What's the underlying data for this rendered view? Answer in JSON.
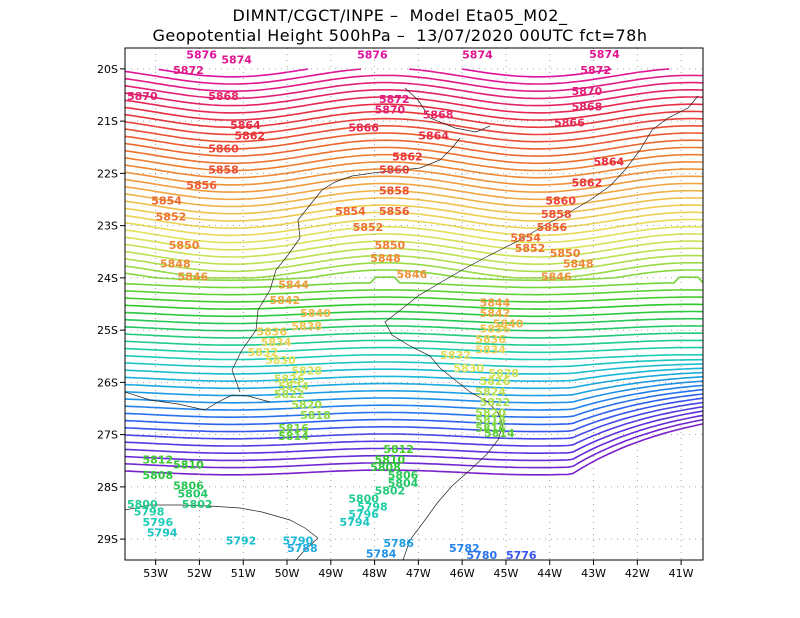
{
  "title_line1": "DIMNT/CGCT/INPE –  Model Eta05_M02_",
  "title_line2": "Geopotential Height 500hPa –  13/07/2020 00UTC fct=78h",
  "map": {
    "lon_range": [
      -53.7,
      -40.5
    ],
    "lat_range": [
      -29.4,
      -19.6
    ],
    "lon_ticks": [
      "53W",
      "52W",
      "51W",
      "50W",
      "49W",
      "48W",
      "47W",
      "46W",
      "45W",
      "44W",
      "43W",
      "42W",
      "41W"
    ],
    "lat_ticks": [
      "20S",
      "21S",
      "22S",
      "23S",
      "24S",
      "25S",
      "26S",
      "27S",
      "28S",
      "29S"
    ],
    "contour_min": 5764,
    "contour_max": 5876,
    "contour_interval": 2,
    "colors": [
      "#7a1fc9",
      "#5a32e0",
      "#2f5bf0",
      "#1e8fe8",
      "#18b8d8",
      "#1ccfb0",
      "#22c86a",
      "#2ec82a",
      "#7ad63a",
      "#b8e050",
      "#e2e25a",
      "#f0c850",
      "#f0a040",
      "#ee8030",
      "#ec5a30",
      "#e8303a",
      "#e22070",
      "#e010a0"
    ],
    "labels": [
      {
        "v": "5876",
        "lon": -52.3,
        "lat": -19.8
      },
      {
        "v": "5874",
        "lon": -51.5,
        "lat": -19.9
      },
      {
        "v": "5876",
        "lon": -48.4,
        "lat": -19.8
      },
      {
        "v": "5874",
        "lon": -46.0,
        "lat": -19.8
      },
      {
        "v": "5874",
        "lon": -43.1,
        "lat": -19.75
      },
      {
        "v": "5872",
        "lon": -52.6,
        "lat": -20.1
      },
      {
        "v": "5872",
        "lon": -43.3,
        "lat": -20.1
      },
      {
        "v": "5870",
        "lon": -53.7,
        "lat": -20.6
      },
      {
        "v": "5870",
        "lon": -43.5,
        "lat": -20.5
      },
      {
        "v": "5868",
        "lon": -51.8,
        "lat": -20.6
      },
      {
        "v": "5872",
        "lon": -47.9,
        "lat": -20.65
      },
      {
        "v": "5870",
        "lon": -48.0,
        "lat": -20.85
      },
      {
        "v": "5868",
        "lon": -46.9,
        "lat": -20.95
      },
      {
        "v": "5868",
        "lon": -43.5,
        "lat": -20.8
      },
      {
        "v": "5864",
        "lon": -51.3,
        "lat": -21.15
      },
      {
        "v": "5862",
        "lon": -51.2,
        "lat": -21.35
      },
      {
        "v": "5866",
        "lon": -48.6,
        "lat": -21.2
      },
      {
        "v": "5864",
        "lon": -47.0,
        "lat": -21.35
      },
      {
        "v": "5866",
        "lon": -43.9,
        "lat": -21.1
      },
      {
        "v": "5860",
        "lon": -51.8,
        "lat": -21.6
      },
      {
        "v": "5862",
        "lon": -47.6,
        "lat": -21.75
      },
      {
        "v": "5864",
        "lon": -43.0,
        "lat": -21.85
      },
      {
        "v": "5858",
        "lon": -51.8,
        "lat": -22.0
      },
      {
        "v": "5860",
        "lon": -47.9,
        "lat": -22.0
      },
      {
        "v": "5856",
        "lon": -52.3,
        "lat": -22.3
      },
      {
        "v": "5862",
        "lon": -43.5,
        "lat": -22.25
      },
      {
        "v": "5858",
        "lon": -47.9,
        "lat": -22.4
      },
      {
        "v": "5854",
        "lon": -53.1,
        "lat": -22.6
      },
      {
        "v": "5860",
        "lon": -44.1,
        "lat": -22.6
      },
      {
        "v": "5854",
        "lon": -48.9,
        "lat": -22.8
      },
      {
        "v": "5856",
        "lon": -47.9,
        "lat": -22.8
      },
      {
        "v": "5858",
        "lon": -44.2,
        "lat": -22.85
      },
      {
        "v": "5852",
        "lon": -53.0,
        "lat": -22.9
      },
      {
        "v": "5852",
        "lon": -48.5,
        "lat": -23.1
      },
      {
        "v": "5856",
        "lon": -44.3,
        "lat": -23.1
      },
      {
        "v": "5854",
        "lon": -44.9,
        "lat": -23.3
      },
      {
        "v": "5850",
        "lon": -52.7,
        "lat": -23.45
      },
      {
        "v": "5850",
        "lon": -48.0,
        "lat": -23.45
      },
      {
        "v": "5852",
        "lon": -44.8,
        "lat": -23.5
      },
      {
        "v": "5850",
        "lon": -44.0,
        "lat": -23.6
      },
      {
        "v": "5848",
        "lon": -52.9,
        "lat": -23.8
      },
      {
        "v": "5848",
        "lon": -48.1,
        "lat": -23.7
      },
      {
        "v": "5848",
        "lon": -43.7,
        "lat": -23.8
      },
      {
        "v": "5846",
        "lon": -52.5,
        "lat": -24.05
      },
      {
        "v": "5846",
        "lon": -47.5,
        "lat": -24.0
      },
      {
        "v": "5846",
        "lon": -44.2,
        "lat": -24.05
      },
      {
        "v": "5844",
        "lon": -50.2,
        "lat": -24.2
      },
      {
        "v": "5842",
        "lon": -50.4,
        "lat": -24.5
      },
      {
        "v": "5844",
        "lon": -45.6,
        "lat": -24.55
      },
      {
        "v": "5840",
        "lon": -49.7,
        "lat": -24.75
      },
      {
        "v": "5842",
        "lon": -45.6,
        "lat": -24.75
      },
      {
        "v": "5840",
        "lon": -45.3,
        "lat": -24.95
      },
      {
        "v": "5838",
        "lon": -49.9,
        "lat": -25.0
      },
      {
        "v": "5836",
        "lon": -45.6,
        "lat": -25.05
      },
      {
        "v": "5836",
        "lon": -50.7,
        "lat": -25.1
      },
      {
        "v": "5834",
        "lon": -50.6,
        "lat": -25.3
      },
      {
        "v": "5836",
        "lon": -45.7,
        "lat": -25.25
      },
      {
        "v": "5834",
        "lon": -45.7,
        "lat": -25.45
      },
      {
        "v": "5832",
        "lon": -50.9,
        "lat": -25.5
      },
      {
        "v": "5832",
        "lon": -46.5,
        "lat": -25.55
      },
      {
        "v": "5830",
        "lon": -50.5,
        "lat": -25.65
      },
      {
        "v": "5830",
        "lon": -46.2,
        "lat": -25.8
      },
      {
        "v": "5828",
        "lon": -49.9,
        "lat": -25.85
      },
      {
        "v": "5828",
        "lon": -45.4,
        "lat": -25.9
      },
      {
        "v": "5826",
        "lon": -50.3,
        "lat": -26.0
      },
      {
        "v": "5826",
        "lon": -45.6,
        "lat": -26.05
      },
      {
        "v": "5824",
        "lon": -50.2,
        "lat": -26.15
      },
      {
        "v": "5822",
        "lon": -50.3,
        "lat": -26.3
      },
      {
        "v": "5824",
        "lon": -45.7,
        "lat": -26.25
      },
      {
        "v": "5822",
        "lon": -45.6,
        "lat": -26.45
      },
      {
        "v": "5820",
        "lon": -49.9,
        "lat": -26.5
      },
      {
        "v": "5820",
        "lon": -45.7,
        "lat": -26.65
      },
      {
        "v": "5818",
        "lon": -49.7,
        "lat": -26.7
      },
      {
        "v": "5818",
        "lon": -45.7,
        "lat": -26.8
      },
      {
        "v": "5816",
        "lon": -45.7,
        "lat": -26.95
      },
      {
        "v": "5816",
        "lon": -50.2,
        "lat": -26.95
      },
      {
        "v": "5814",
        "lon": -50.2,
        "lat": -27.1
      },
      {
        "v": "5814",
        "lon": -45.5,
        "lat": -27.05
      },
      {
        "v": "5812",
        "lon": -47.8,
        "lat": -27.35
      },
      {
        "v": "5812",
        "lon": -53.3,
        "lat": -27.55
      },
      {
        "v": "5810",
        "lon": -48.0,
        "lat": -27.55
      },
      {
        "v": "5810",
        "lon": -52.6,
        "lat": -27.65
      },
      {
        "v": "5808",
        "lon": -48.1,
        "lat": -27.7
      },
      {
        "v": "5806",
        "lon": -47.7,
        "lat": -27.85
      },
      {
        "v": "5808",
        "lon": -53.3,
        "lat": -27.85
      },
      {
        "v": "5804",
        "lon": -47.7,
        "lat": -28.0
      },
      {
        "v": "5806",
        "lon": -52.6,
        "lat": -28.05
      },
      {
        "v": "5802",
        "lon": -48.0,
        "lat": -28.15
      },
      {
        "v": "5804",
        "lon": -52.5,
        "lat": -28.2
      },
      {
        "v": "5802",
        "lon": -52.4,
        "lat": -28.4
      },
      {
        "v": "5800",
        "lon": -48.6,
        "lat": -28.3
      },
      {
        "v": "5800",
        "lon": -53.7,
        "lat": -28.4
      },
      {
        "v": "5798",
        "lon": -48.4,
        "lat": -28.45
      },
      {
        "v": "5798",
        "lon": -53.5,
        "lat": -28.55
      },
      {
        "v": "5796",
        "lon": -48.6,
        "lat": -28.6
      },
      {
        "v": "5796",
        "lon": -53.3,
        "lat": -28.75
      },
      {
        "v": "5794",
        "lon": -48.8,
        "lat": -28.75
      },
      {
        "v": "5794",
        "lon": -53.2,
        "lat": -28.95
      },
      {
        "v": "5792",
        "lon": -51.4,
        "lat": -29.1
      },
      {
        "v": "5790",
        "lon": -50.1,
        "lat": -29.1
      },
      {
        "v": "5786",
        "lon": -47.8,
        "lat": -29.15
      },
      {
        "v": "5788",
        "lon": -50.0,
        "lat": -29.25
      },
      {
        "v": "5782",
        "lon": -46.3,
        "lat": -29.25
      },
      {
        "v": "5784",
        "lon": -48.2,
        "lat": -29.35
      },
      {
        "v": "5780",
        "lon": -45.9,
        "lat": -29.38
      },
      {
        "v": "5776",
        "lon": -45.0,
        "lat": -29.38
      }
    ]
  }
}
